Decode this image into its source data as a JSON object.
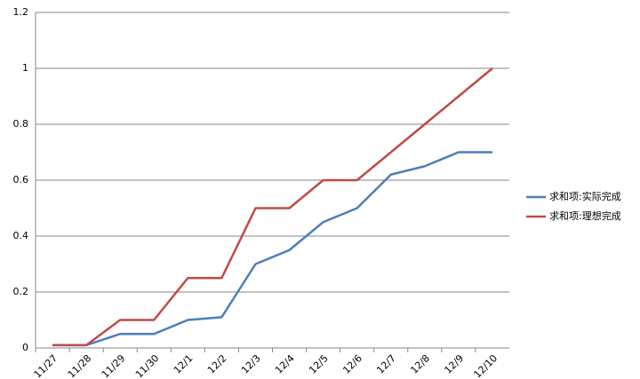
{
  "chart_data": {
    "type": "line",
    "categories": [
      "11/27",
      "11/28",
      "11/29",
      "11/30",
      "12/1",
      "12/2",
      "12/3",
      "12/4",
      "12/5",
      "12/6",
      "12/7",
      "12/8",
      "12/9",
      "12/10"
    ],
    "series": [
      {
        "name": "求和项:实际完成",
        "color": "#4a7ebb",
        "values": [
          0.01,
          0.01,
          0.05,
          0.05,
          0.1,
          0.11,
          0.3,
          0.35,
          0.45,
          0.5,
          0.62,
          0.65,
          0.7,
          0.7
        ]
      },
      {
        "name": "求和项:理想完成",
        "color": "#be4b48",
        "values": [
          0.01,
          0.01,
          0.1,
          0.1,
          0.25,
          0.25,
          0.5,
          0.5,
          0.6,
          0.6,
          0.7,
          0.8,
          0.9,
          1
        ]
      }
    ],
    "ylim": [
      0,
      1.2
    ],
    "yticks": [
      0,
      0.2,
      0.4,
      0.6,
      0.8,
      1,
      1.2
    ],
    "grid": true,
    "legend": "right"
  }
}
